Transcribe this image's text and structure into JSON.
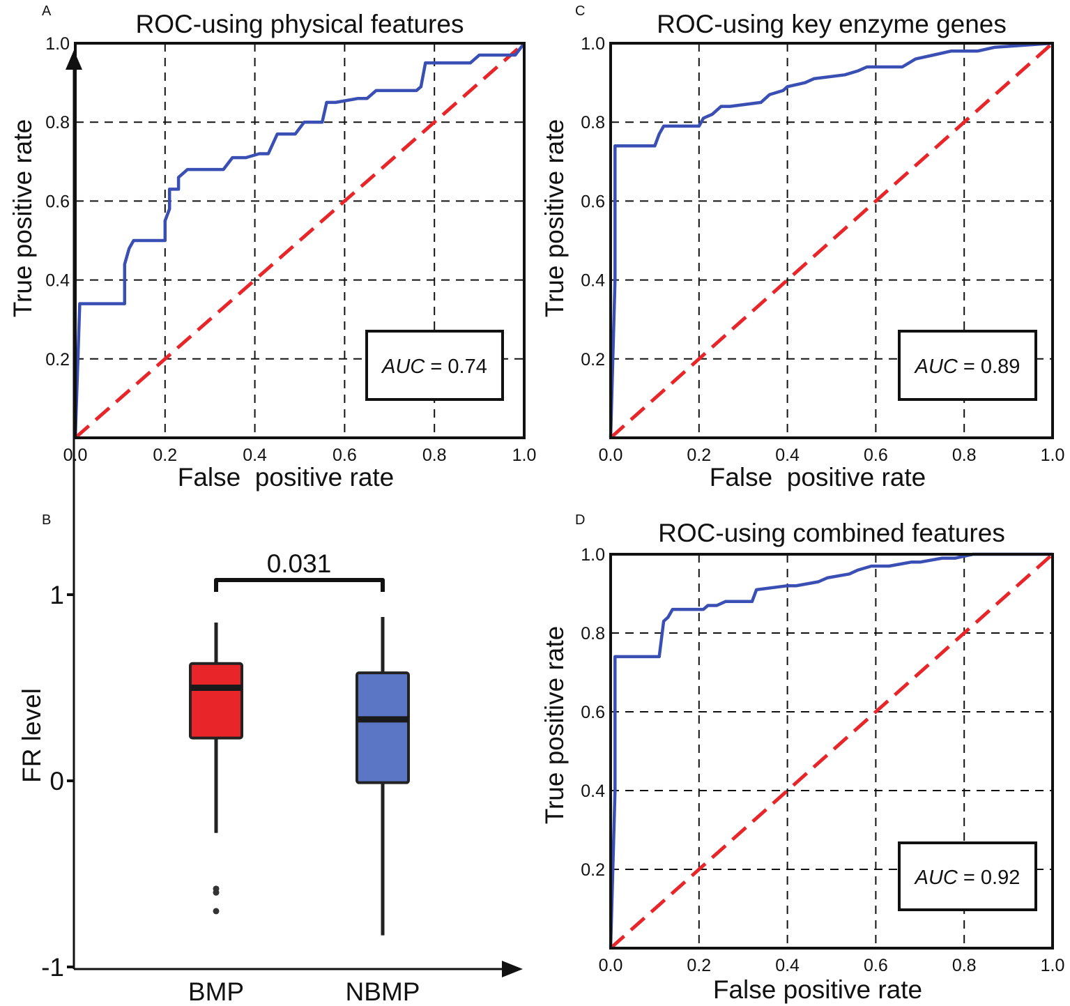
{
  "chart_data": [
    {
      "panel": "A",
      "type": "line",
      "title": "ROC-using physical features",
      "xlabel": "False  positive rate",
      "ylabel": "True positive rate",
      "xlim": [
        0,
        1
      ],
      "ylim": [
        0,
        1
      ],
      "grid": true,
      "xticks": [
        "0.0",
        "0.2",
        "0.4",
        "0.6",
        "0.8",
        "1.0"
      ],
      "yticks": [
        "0.2",
        "0.4",
        "0.6",
        "0.8",
        "1.0"
      ],
      "annotation": {
        "label": "AUC",
        "value": "= 0.74"
      },
      "series": [
        {
          "name": "ROC",
          "color": "#3a4fb4",
          "x": [
            0.0,
            0.01,
            0.11,
            0.11,
            0.12,
            0.13,
            0.2,
            0.2,
            0.21,
            0.21,
            0.23,
            0.23,
            0.25,
            0.33,
            0.35,
            0.38,
            0.41,
            0.43,
            0.45,
            0.49,
            0.51,
            0.55,
            0.56,
            0.58,
            0.63,
            0.65,
            0.67,
            0.76,
            0.77,
            0.78,
            0.88,
            0.89,
            0.9,
            0.98,
            1.0
          ],
          "y": [
            0.0,
            0.34,
            0.34,
            0.44,
            0.48,
            0.5,
            0.5,
            0.55,
            0.58,
            0.63,
            0.63,
            0.66,
            0.68,
            0.68,
            0.71,
            0.71,
            0.72,
            0.72,
            0.77,
            0.77,
            0.8,
            0.8,
            0.85,
            0.85,
            0.86,
            0.86,
            0.88,
            0.88,
            0.89,
            0.95,
            0.95,
            0.96,
            0.97,
            0.97,
            1.0
          ]
        },
        {
          "name": "chance",
          "color": "#e8262a",
          "x": [
            0,
            1
          ],
          "y": [
            0,
            1
          ]
        }
      ]
    },
    {
      "panel": "B",
      "type": "box",
      "ylabel": "FR level",
      "yticks": [
        "-1",
        "0",
        "1"
      ],
      "ylim": [
        -1,
        1.3
      ],
      "categories": [
        "BMP",
        "NBMP"
      ],
      "significance": "0.031",
      "boxes": [
        {
          "name": "BMP",
          "color": "#e8262a",
          "whisker_low": -0.28,
          "q1": 0.23,
          "median": 0.5,
          "q3": 0.63,
          "whisker_high": 0.85,
          "outliers": [
            -0.58,
            -0.6,
            -0.7
          ]
        },
        {
          "name": "NBMP",
          "color": "#5a76c4",
          "whisker_low": -0.83,
          "q1": -0.01,
          "median": 0.33,
          "q3": 0.58,
          "whisker_high": 0.88,
          "outliers": []
        }
      ]
    },
    {
      "panel": "C",
      "type": "line",
      "title": "ROC-using key enzyme genes",
      "xlabel": "False  positive rate",
      "ylabel": "True positive rate",
      "xlim": [
        0,
        1
      ],
      "ylim": [
        0,
        1
      ],
      "grid": true,
      "xticks": [
        "0.0",
        "0.2",
        "0.4",
        "0.6",
        "0.8",
        "1.0"
      ],
      "yticks": [
        "0.2",
        "0.4",
        "0.6",
        "0.8",
        "1.0"
      ],
      "annotation": {
        "label": "AUC",
        "value": "= 0.89"
      },
      "series": [
        {
          "name": "ROC",
          "color": "#3a4fb4",
          "x": [
            0.0,
            0.01,
            0.01,
            0.1,
            0.11,
            0.12,
            0.2,
            0.21,
            0.23,
            0.25,
            0.27,
            0.34,
            0.36,
            0.39,
            0.4,
            0.44,
            0.46,
            0.53,
            0.56,
            0.58,
            0.66,
            0.69,
            0.73,
            0.77,
            0.8,
            0.83,
            0.87,
            1.0
          ],
          "y": [
            0.0,
            0.4,
            0.74,
            0.74,
            0.77,
            0.79,
            0.79,
            0.81,
            0.82,
            0.84,
            0.84,
            0.85,
            0.87,
            0.88,
            0.89,
            0.9,
            0.91,
            0.92,
            0.93,
            0.94,
            0.94,
            0.96,
            0.97,
            0.98,
            0.98,
            0.98,
            0.99,
            1.0
          ]
        },
        {
          "name": "chance",
          "color": "#e8262a",
          "x": [
            0,
            1
          ],
          "y": [
            0,
            1
          ]
        }
      ]
    },
    {
      "panel": "D",
      "type": "line",
      "title": "ROC-using combined features",
      "xlabel": "False positive rate",
      "ylabel": "True positive rate",
      "xlim": [
        0,
        1
      ],
      "ylim": [
        0,
        1
      ],
      "grid": true,
      "xticks": [
        "0.0",
        "0.2",
        "0.4",
        "0.6",
        "0.8",
        "1.0"
      ],
      "yticks": [
        "0.2",
        "0.4",
        "0.6",
        "0.8",
        "1.0"
      ],
      "annotation": {
        "label": "AUC",
        "value": "= 0.92"
      },
      "series": [
        {
          "name": "ROC",
          "color": "#3a4fb4",
          "x": [
            0.0,
            0.01,
            0.01,
            0.11,
            0.12,
            0.13,
            0.14,
            0.21,
            0.22,
            0.24,
            0.26,
            0.32,
            0.33,
            0.4,
            0.42,
            0.47,
            0.49,
            0.54,
            0.56,
            0.59,
            0.63,
            0.68,
            0.7,
            0.75,
            0.78,
            0.82,
            0.88,
            0.9,
            1.0
          ],
          "y": [
            0.0,
            0.4,
            0.74,
            0.74,
            0.83,
            0.84,
            0.86,
            0.86,
            0.87,
            0.87,
            0.88,
            0.88,
            0.91,
            0.92,
            0.92,
            0.93,
            0.94,
            0.95,
            0.96,
            0.97,
            0.97,
            0.98,
            0.98,
            0.99,
            0.99,
            1.0,
            1.0,
            1.0,
            1.0
          ]
        },
        {
          "name": "chance",
          "color": "#e8262a",
          "x": [
            0,
            1
          ],
          "y": [
            0,
            1
          ]
        }
      ]
    }
  ]
}
